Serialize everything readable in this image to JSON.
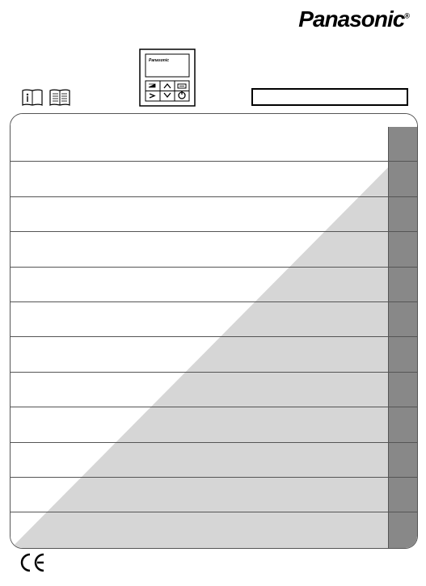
{
  "brand": "Panasonic",
  "brand_registered": "®",
  "legend_text": "",
  "ce_mark": "CE",
  "page_range": "",
  "rows": [
    {
      "line1": "",
      "line2": "",
      "tab": ""
    },
    {
      "line1": "",
      "line2": "",
      "tab": ""
    },
    {
      "line1": "",
      "line2": "",
      "tab": ""
    },
    {
      "line1": "",
      "line2": "",
      "tab": ""
    },
    {
      "line1": "",
      "line2": "",
      "tab": ""
    },
    {
      "line1": "",
      "line2": "",
      "tab": ""
    },
    {
      "line1": "",
      "line2": "",
      "tab": ""
    },
    {
      "line1": "",
      "line2": "",
      "tab": ""
    },
    {
      "line1": "",
      "line2": "",
      "tab": ""
    },
    {
      "line1": "",
      "line2": "",
      "tab": ""
    },
    {
      "line1": "",
      "line2": "",
      "tab": ""
    },
    {
      "line1": "",
      "line2": "",
      "tab": ""
    }
  ],
  "colors": {
    "tab_bg": "#888888",
    "border": "#555555",
    "diag_light": "#ffffff",
    "diag_shade": "#d6d6d6"
  }
}
